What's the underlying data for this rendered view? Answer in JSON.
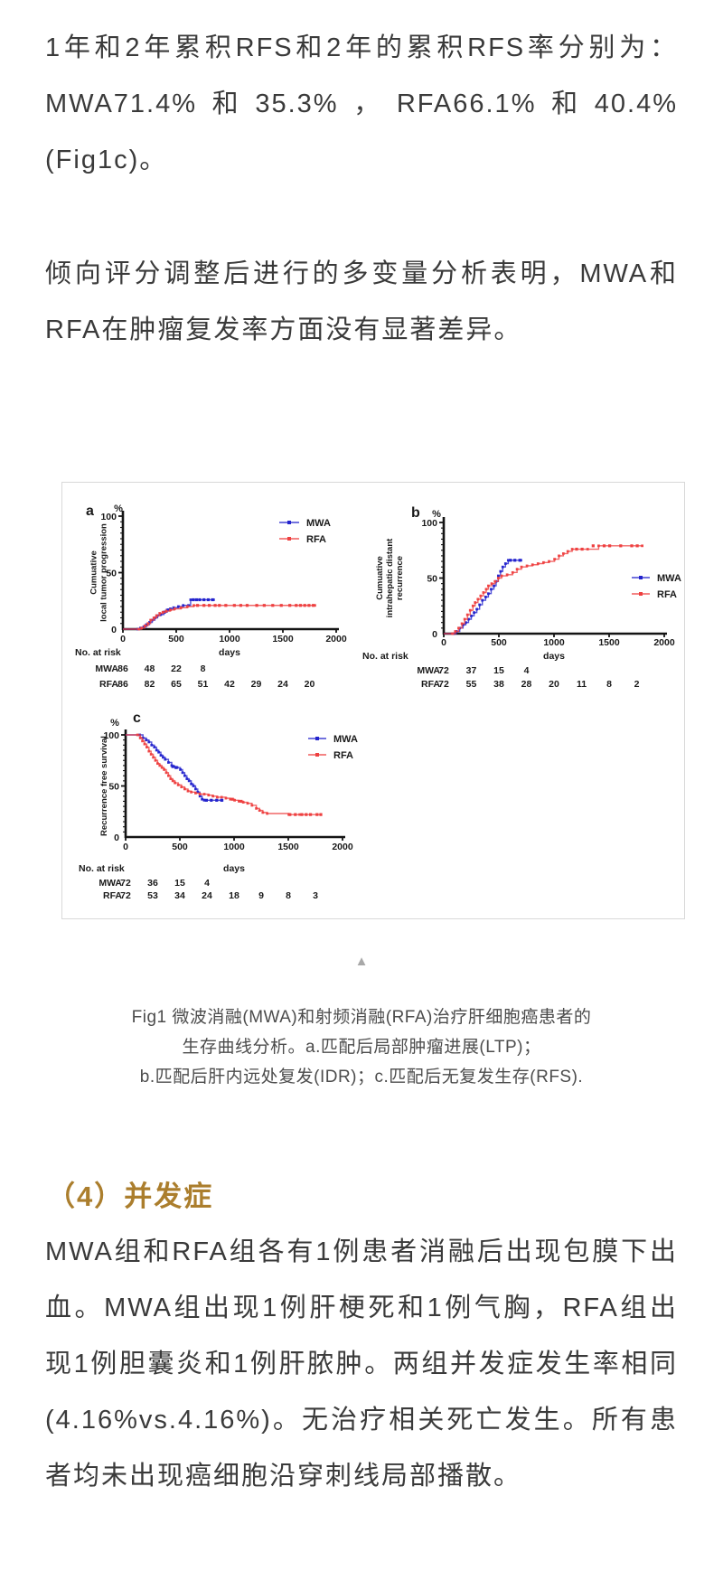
{
  "paragraphs": {
    "p1": "1年和2年累积RFS和2年的累积RFS率分别为：MWA71.4%和35.3%，RFA66.1%和40.4%(Fig1c)。",
    "p2": "倾向评分调整后进行的多变量分析表明，MWA和RFA在肿瘤复发率方面没有显著差异。"
  },
  "figure": {
    "collapse_icon": "▲",
    "caption_lines": [
      "Fig1 微波消融(MWA)和射频消融(RFA)治疗肝细胞癌患者的",
      "生存曲线分析。a.匹配后局部肿瘤进展(LTP)；",
      "b.匹配后肝内远处复发(IDR)；c.匹配后无复发生存(RFS)."
    ]
  },
  "section": {
    "heading": "（4）并发症",
    "heading_color": "#ab7e2d",
    "body": "MWA组和RFA组各有1例患者消融后出现包膜下出血。MWA组出现1例肝梗死和1例气胸，RFA组出现1例胆囊炎和1例肝脓肿。两组并发症发生率相同(4.16%vs.4.16%)。无治疗相关死亡发生。所有患者均未出现癌细胞沿穿刺线局部播散。"
  },
  "chart_data": [
    {
      "type": "line",
      "panel": "a",
      "kind": "kaplan-meier-cumulative-incidence",
      "ylabel_lines": [
        "Cumuative",
        "local tumor progression"
      ],
      "unit": "%",
      "xlabel": "days",
      "xlim": [
        0,
        2000
      ],
      "ylim": [
        0,
        100
      ],
      "xticks": [
        0,
        500,
        1000,
        1500,
        2000
      ],
      "yticks": [
        0,
        50,
        100
      ],
      "legend_position": "top-right",
      "series": [
        {
          "name": "MWA",
          "color": "#2323cd",
          "points": [
            [
              0,
              0
            ],
            [
              140,
              0
            ],
            [
              165,
              1
            ],
            [
              195,
              2
            ],
            [
              220,
              4
            ],
            [
              250,
              6
            ],
            [
              275,
              8
            ],
            [
              300,
              10
            ],
            [
              325,
              12
            ],
            [
              355,
              13
            ],
            [
              385,
              15
            ],
            [
              415,
              17
            ],
            [
              445,
              18
            ],
            [
              475,
              19
            ],
            [
              520,
              20
            ],
            [
              565,
              21
            ],
            [
              615,
              21
            ],
            [
              635,
              26
            ],
            [
              850,
              26
            ]
          ],
          "censors": [
            [
              390,
              15
            ],
            [
              430,
              17
            ],
            [
              660,
              26
            ],
            [
              690,
              26
            ],
            [
              720,
              26
            ],
            [
              760,
              26
            ],
            [
              800,
              26
            ],
            [
              840,
              26
            ]
          ]
        },
        {
          "name": "RFA",
          "color": "#ee4040",
          "points": [
            [
              0,
              0
            ],
            [
              150,
              0
            ],
            [
              175,
              1
            ],
            [
              205,
              3
            ],
            [
              235,
              5
            ],
            [
              260,
              8
            ],
            [
              290,
              10
            ],
            [
              315,
              12
            ],
            [
              345,
              14
            ],
            [
              375,
              15
            ],
            [
              405,
              16
            ],
            [
              445,
              17
            ],
            [
              485,
              18
            ],
            [
              545,
              19
            ],
            [
              605,
              20
            ],
            [
              665,
              21
            ],
            [
              1800,
              21
            ]
          ],
          "censors": [
            [
              700,
              21
            ],
            [
              760,
              21
            ],
            [
              810,
              21
            ],
            [
              865,
              21
            ],
            [
              905,
              21
            ],
            [
              965,
              21
            ],
            [
              1045,
              21
            ],
            [
              1105,
              21
            ],
            [
              1165,
              21
            ],
            [
              1255,
              21
            ],
            [
              1325,
              21
            ],
            [
              1405,
              21
            ],
            [
              1485,
              21
            ],
            [
              1565,
              21
            ],
            [
              1625,
              21
            ],
            [
              1665,
              21
            ],
            [
              1705,
              21
            ],
            [
              1745,
              21
            ],
            [
              1785,
              21
            ]
          ]
        }
      ],
      "risk_table": {
        "title": "No. at risk",
        "interval_days": 250,
        "rows": [
          {
            "name": "MWA",
            "counts": [
              86,
              48,
              22,
              8
            ]
          },
          {
            "name": "RFA",
            "counts": [
              86,
              82,
              65,
              51,
              42,
              29,
              24,
              20
            ]
          }
        ]
      }
    },
    {
      "type": "line",
      "panel": "b",
      "kind": "kaplan-meier-cumulative-incidence",
      "ylabel_lines": [
        "Cumuative",
        "intrahepatic distant",
        "recurrence"
      ],
      "unit": "%",
      "xlabel": "days",
      "xlim": [
        0,
        2000
      ],
      "ylim": [
        0,
        100
      ],
      "xticks": [
        0,
        500,
        1000,
        1500,
        2000
      ],
      "yticks": [
        0,
        50,
        100
      ],
      "legend_position": "middle-right",
      "series": [
        {
          "name": "MWA",
          "color": "#2323cd",
          "points": [
            [
              0,
              0
            ],
            [
              90,
              0
            ],
            [
              115,
              2
            ],
            [
              145,
              5
            ],
            [
              175,
              8
            ],
            [
              200,
              10
            ],
            [
              225,
              13
            ],
            [
              250,
              16
            ],
            [
              275,
              19
            ],
            [
              300,
              22
            ],
            [
              325,
              26
            ],
            [
              350,
              30
            ],
            [
              380,
              33
            ],
            [
              405,
              36
            ],
            [
              430,
              40
            ],
            [
              455,
              43
            ],
            [
              475,
              47
            ],
            [
              495,
              52
            ],
            [
              515,
              56
            ],
            [
              535,
              60
            ],
            [
              560,
              63
            ],
            [
              585,
              66
            ],
            [
              700,
              66
            ]
          ],
          "censors": [
            [
              605,
              66
            ],
            [
              645,
              66
            ],
            [
              690,
              66
            ]
          ]
        },
        {
          "name": "RFA",
          "color": "#ee4040",
          "points": [
            [
              0,
              0
            ],
            [
              80,
              0
            ],
            [
              105,
              2
            ],
            [
              135,
              5
            ],
            [
              165,
              9
            ],
            [
              190,
              13
            ],
            [
              215,
              17
            ],
            [
              240,
              21
            ],
            [
              265,
              25
            ],
            [
              285,
              28
            ],
            [
              310,
              31
            ],
            [
              335,
              34
            ],
            [
              360,
              37
            ],
            [
              385,
              40
            ],
            [
              405,
              43
            ],
            [
              435,
              45
            ],
            [
              465,
              47
            ],
            [
              495,
              50
            ],
            [
              525,
              52
            ],
            [
              575,
              53
            ],
            [
              625,
              55
            ],
            [
              665,
              58
            ],
            [
              705,
              60
            ],
            [
              755,
              61
            ],
            [
              805,
              62
            ],
            [
              855,
              63
            ],
            [
              905,
              64
            ],
            [
              955,
              65
            ],
            [
              1005,
              67
            ],
            [
              1045,
              70
            ],
            [
              1085,
              72
            ],
            [
              1125,
              74
            ],
            [
              1165,
              76
            ],
            [
              1305,
              76
            ],
            [
              1405,
              79
            ],
            [
              1800,
              79
            ]
          ],
          "censors": [
            [
              1205,
              76
            ],
            [
              1255,
              76
            ],
            [
              1355,
              79
            ],
            [
              1455,
              79
            ],
            [
              1505,
              79
            ],
            [
              1605,
              79
            ],
            [
              1705,
              79
            ],
            [
              1755,
              79
            ]
          ]
        }
      ],
      "risk_table": {
        "title": "No. at risk",
        "interval_days": 250,
        "rows": [
          {
            "name": "MWA",
            "counts": [
              72,
              37,
              15,
              4
            ]
          },
          {
            "name": "RFA",
            "counts": [
              72,
              55,
              38,
              28,
              20,
              11,
              8,
              2
            ]
          }
        ]
      }
    },
    {
      "type": "line",
      "panel": "c",
      "kind": "kaplan-meier-survival",
      "ylabel_lines": [
        "Recurrence free survival"
      ],
      "unit": "%",
      "xlabel": "days",
      "xlim": [
        0,
        2000
      ],
      "ylim": [
        0,
        100
      ],
      "xticks": [
        0,
        500,
        1000,
        1500,
        2000
      ],
      "yticks": [
        0,
        50,
        100
      ],
      "legend_position": "top-right",
      "series": [
        {
          "name": "MWA",
          "color": "#2323cd",
          "points": [
            [
              0,
              100
            ],
            [
              130,
              100
            ],
            [
              160,
              97
            ],
            [
              190,
              95
            ],
            [
              215,
              93
            ],
            [
              240,
              90
            ],
            [
              265,
              88
            ],
            [
              285,
              85
            ],
            [
              305,
              83
            ],
            [
              325,
              80
            ],
            [
              345,
              78
            ],
            [
              365,
              76
            ],
            [
              395,
              73
            ],
            [
              425,
              70
            ],
            [
              445,
              69
            ],
            [
              475,
              68
            ],
            [
              505,
              66
            ],
            [
              525,
              63
            ],
            [
              545,
              60
            ],
            [
              565,
              57
            ],
            [
              585,
              55
            ],
            [
              605,
              52
            ],
            [
              625,
              50
            ],
            [
              645,
              47
            ],
            [
              665,
              44
            ],
            [
              685,
              40
            ],
            [
              705,
              37
            ],
            [
              725,
              36
            ],
            [
              890,
              36
            ]
          ],
          "censors": [
            [
              435,
              69
            ],
            [
              465,
              68
            ],
            [
              745,
              36
            ],
            [
              790,
              36
            ],
            [
              840,
              36
            ],
            [
              885,
              36
            ]
          ]
        },
        {
          "name": "RFA",
          "color": "#ee4040",
          "points": [
            [
              0,
              100
            ],
            [
              110,
              100
            ],
            [
              135,
              97
            ],
            [
              155,
              94
            ],
            [
              175,
              91
            ],
            [
              195,
              88
            ],
            [
              215,
              84
            ],
            [
              235,
              81
            ],
            [
              255,
              78
            ],
            [
              275,
              75
            ],
            [
              295,
              72
            ],
            [
              315,
              70
            ],
            [
              335,
              68
            ],
            [
              355,
              66
            ],
            [
              375,
              63
            ],
            [
              395,
              60
            ],
            [
              415,
              57
            ],
            [
              435,
              55
            ],
            [
              455,
              53
            ],
            [
              485,
              51
            ],
            [
              515,
              49
            ],
            [
              545,
              47
            ],
            [
              575,
              45
            ],
            [
              605,
              44
            ],
            [
              645,
              43
            ],
            [
              685,
              42
            ],
            [
              725,
              42
            ],
            [
              765,
              41
            ],
            [
              805,
              40
            ],
            [
              845,
              39
            ],
            [
              885,
              39
            ],
            [
              925,
              38
            ],
            [
              965,
              37
            ],
            [
              1005,
              36
            ],
            [
              1045,
              35
            ],
            [
              1085,
              34
            ],
            [
              1125,
              33
            ],
            [
              1165,
              31
            ],
            [
              1205,
              28
            ],
            [
              1235,
              26
            ],
            [
              1265,
              24
            ],
            [
              1305,
              23
            ],
            [
              1505,
              22
            ],
            [
              1605,
              22
            ],
            [
              1800,
              22
            ]
          ],
          "censors": [
            [
              985,
              37
            ],
            [
              1065,
              35
            ],
            [
              1515,
              22
            ],
            [
              1565,
              22
            ],
            [
              1625,
              22
            ],
            [
              1665,
              22
            ],
            [
              1705,
              22
            ],
            [
              1765,
              22
            ],
            [
              1800,
              22
            ]
          ]
        }
      ],
      "risk_table": {
        "title": "No. at risk",
        "interval_days": 250,
        "rows": [
          {
            "name": "MWA",
            "counts": [
              72,
              36,
              15,
              4
            ]
          },
          {
            "name": "RFA",
            "counts": [
              72,
              53,
              34,
              24,
              18,
              9,
              8,
              3
            ]
          }
        ]
      }
    }
  ]
}
